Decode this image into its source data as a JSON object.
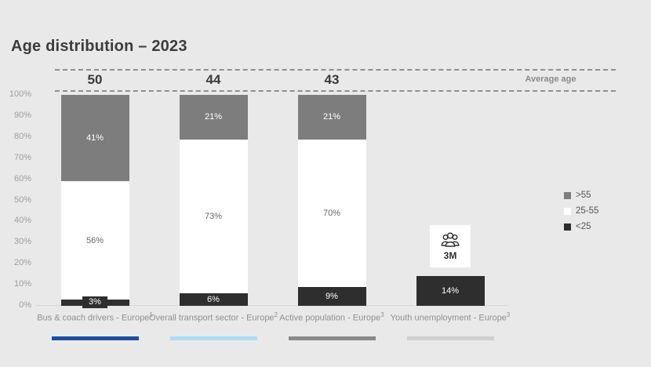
{
  "title": "Age distribution – 2023",
  "average_age_label": "Average age",
  "legend": [
    {
      "label": ">55",
      "color": "#7d7d7d",
      "text_color": "#ffffff"
    },
    {
      "label": "25-55",
      "color": "#ffffff",
      "text_color": "#666666"
    },
    {
      "label": "<25",
      "color": "#2e2e2e",
      "text_color": "#ffffff"
    }
  ],
  "colors": {
    "background": "#e9e9e9",
    "title_text": "#3c3c3c",
    "dashed_line": "#8f8f8f",
    "axis_text": "#9d9d9d",
    "underline_blue": "#1d4f9f",
    "underline_light_blue": "#abddf4",
    "underline_gray": "#8a8a8a",
    "underline_light_gray": "#cfcfcf"
  },
  "chart_data": {
    "type": "bar",
    "stacked": true,
    "title": "Age distribution – 2023",
    "xlabel": "",
    "ylabel": "",
    "ylim": [
      0,
      100
    ],
    "yticks": [
      "100%",
      "90%",
      "80%",
      "70%",
      "60%",
      "50%",
      "40%",
      "30%",
      "20%",
      "10%",
      "0%"
    ],
    "grid": false,
    "legend_position": "right",
    "series_names": [
      ">55",
      "25-55",
      "<25"
    ],
    "columns": [
      {
        "label": "Bus & coach drivers - Europe",
        "footnote": "1",
        "average_age": "50",
        "underline_color": "#1d4f9f",
        "segments": [
          {
            "series": ">55",
            "value": 41,
            "label": "41%"
          },
          {
            "series": "25-55",
            "value": 56,
            "label": "56%"
          },
          {
            "series": "<25",
            "value": 3,
            "label": "3%"
          }
        ]
      },
      {
        "label": "Overall transport sector - Europe",
        "footnote": "2",
        "average_age": "44",
        "underline_color": "#abddf4",
        "segments": [
          {
            "series": ">55",
            "value": 21,
            "label": "21%"
          },
          {
            "series": "25-55",
            "value": 73,
            "label": "73%"
          },
          {
            "series": "<25",
            "value": 6,
            "label": "6%"
          }
        ]
      },
      {
        "label": "Active population - Europe",
        "footnote": "3",
        "average_age": "43",
        "underline_color": "#8a8a8a",
        "segments": [
          {
            "series": ">55",
            "value": 21,
            "label": "21%"
          },
          {
            "series": "25-55",
            "value": 70,
            "label": "70%"
          },
          {
            "series": "<25",
            "value": 9,
            "label": "9%"
          }
        ]
      },
      {
        "label": "Youth unemployment - Europe",
        "footnote": "3",
        "average_age": null,
        "underline_color": "#cfcfcf",
        "annotation": {
          "icon": "people-icon",
          "text": "3M"
        },
        "segments": [
          {
            "series": "<25",
            "value": 14,
            "label": "14%"
          }
        ]
      }
    ]
  }
}
